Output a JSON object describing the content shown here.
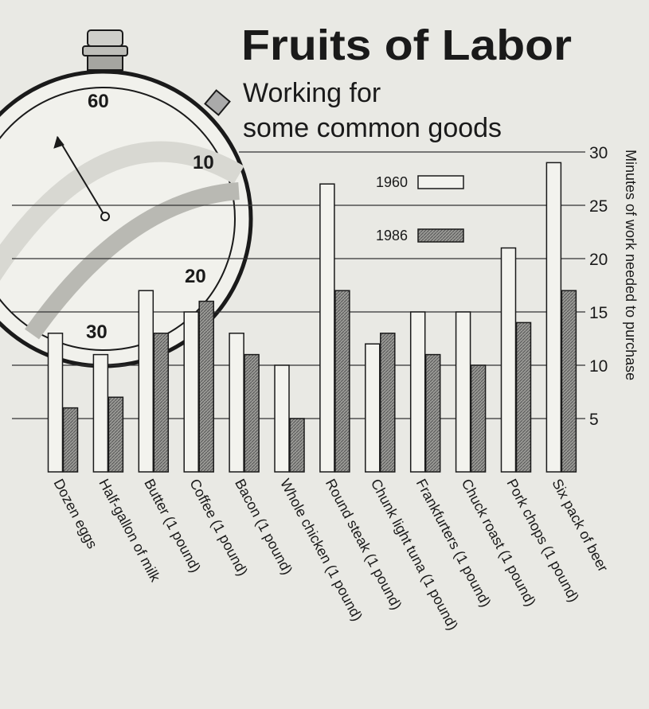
{
  "chart_data": {
    "type": "bar",
    "title": "Fruits of Labor",
    "subtitle": [
      "Working for",
      "some common goods"
    ],
    "y_label": "Minutes of work needed to purchase",
    "categories": [
      "Dozen eggs",
      "Half-gallon of milk",
      "Butter (1 pound)",
      "Coffee (1 pound)",
      "Bacon (1 pound)",
      "Whole chicken (1 pound)",
      "Round steak (1 pound)",
      "Chunk light tuna (1 pound)",
      "Frankfurters (1 pound)",
      "Chuck roast (1 pound)",
      "Pork chops (1 pound)",
      "Six pack of beer"
    ],
    "series": [
      {
        "name": "1960",
        "color": "#f3f3ee",
        "values": [
          13,
          11,
          17,
          15,
          13,
          10,
          27,
          12,
          15,
          15,
          21,
          29
        ]
      },
      {
        "name": "1986",
        "color": "#8a8a86",
        "values": [
          6,
          7,
          13,
          16,
          11,
          5,
          17,
          13,
          11,
          10,
          14,
          17
        ]
      }
    ],
    "ylim": [
      0,
      30
    ],
    "yticks": [
      5,
      10,
      15,
      20,
      25,
      30
    ],
    "grid": true
  },
  "illustration": {
    "dial_labels": [
      "60",
      "10",
      "20",
      "30"
    ]
  }
}
